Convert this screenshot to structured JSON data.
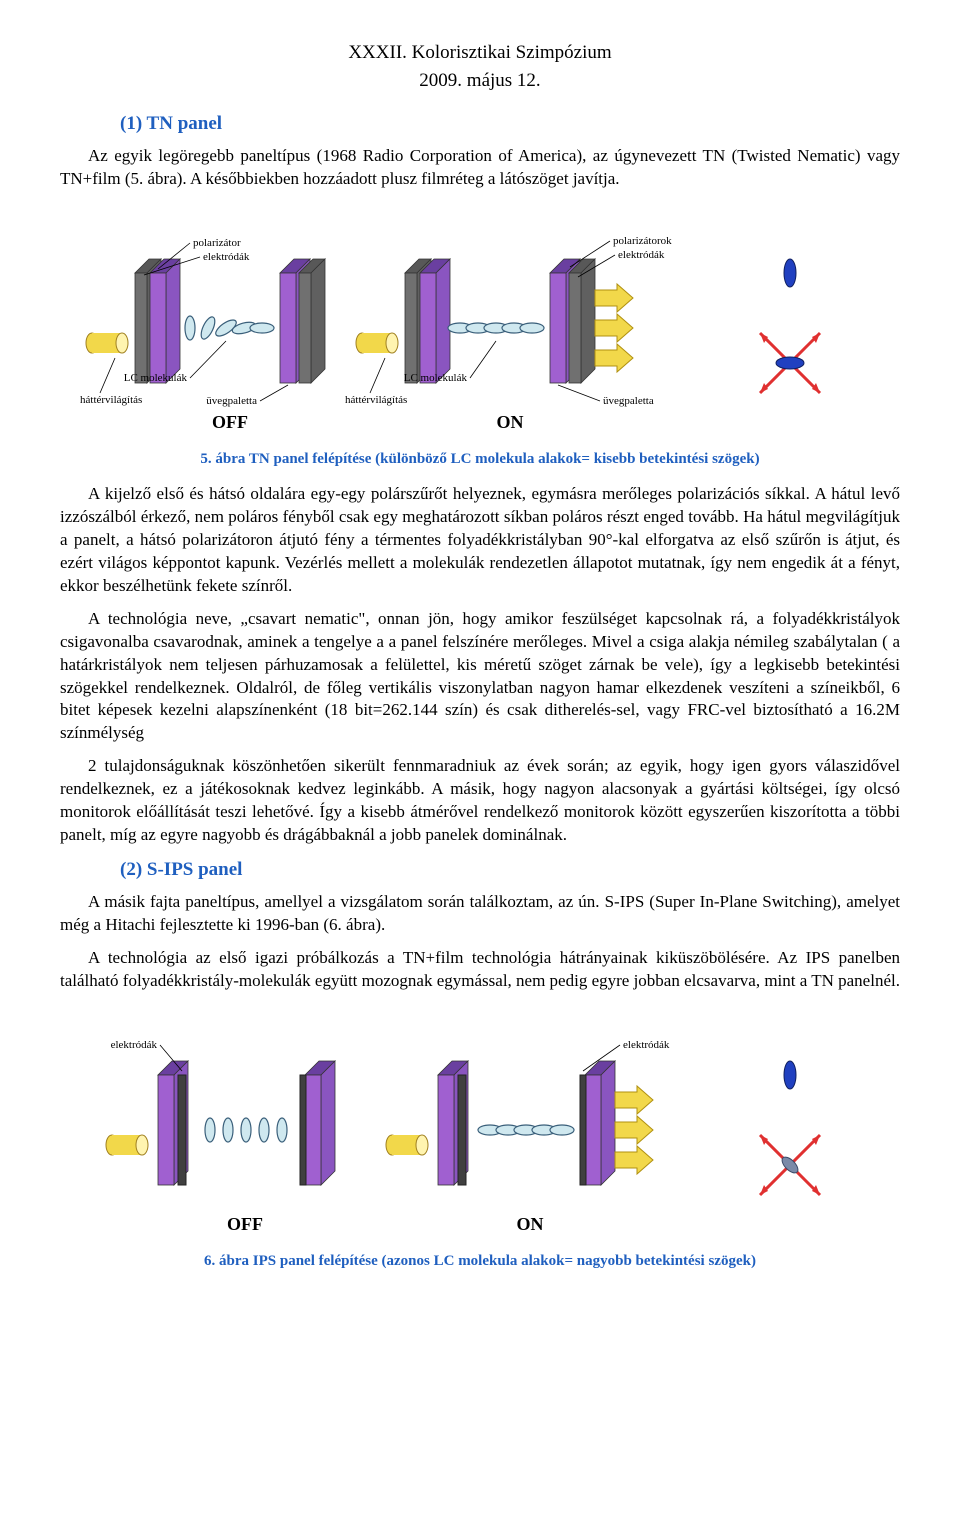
{
  "header": {
    "title": "XXXII. Kolorisztikai Szimpózium",
    "date": "2009. május 12."
  },
  "section1": {
    "heading": "(1) TN panel",
    "para1": "Az egyik legöregebb paneltípus (1968 Radio Corporation of America), az úgynevezett TN (Twisted Nematic) vagy TN+film (5. ábra). A későbbiekben hozzáadott plusz filmréteg a látószöget javítja.",
    "caption5_num": "5.",
    "caption5_text": " ábra TN panel felépítése (különböző LC molekula alakok= kisebb betekintési szögek)",
    "para2": "A kijelző első és hátsó oldalára egy-egy polárszűrőt helyeznek, egymásra merőleges polarizációs síkkal. A hátul levő izzószálból érkező, nem poláros fényből csak egy meghatározott síkban poláros részt enged tovább. Ha hátul megvilágítjuk a panelt, a hátsó polarizátoron átjutó fény a térmentes folyadékkristályban 90°-kal elforgatva az első szűrőn is átjut, és ezért világos képpontot kapunk. Vezérlés mellett a molekulák rendezetlen állapotot mutatnak, így nem engedik át a fényt, ekkor beszélhetünk fekete színről.",
    "para3": "A technológia neve, „csavart nematic\", onnan jön, hogy amikor feszülséget kapcsolnak rá, a folyadékkristályok csigavonalba csavarodnak, aminek a tengelye a a panel felszínére merőleges. Mivel a csiga alakja némileg szabálytalan ( a határkristályok nem teljesen párhuzamosak a felülettel, kis méretű szöget zárnak be vele), így a legkisebb betekintési szögekkel rendelkeznek. Oldalról, de főleg vertikális viszonylatban nagyon hamar elkezdenek veszíteni a színeikből, 6 bitet képesek kezelni alapszínenként (18 bit=262.144 szín) és csak ditherelés-sel, vagy FRC-vel biztosítható a 16.2M színmélység",
    "para4": "2 tulajdonságuknak köszönhetően sikerült fennmaradniuk az évek során; az egyik, hogy igen gyors válaszidővel rendelkeznek, ez a játékosoknak kedvez leginkább. A másik, hogy nagyon alacsonyak a gyártási költségei, így olcsó monitorok előállítását teszi lehetővé. Így a kisebb átmérővel rendelkező monitorok között egyszerűen kiszorította a többi panelt, míg az egyre nagyobb és drágábbaknál a jobb panelek dominálnak."
  },
  "section2": {
    "heading": "(2) S-IPS panel",
    "para1": "A másik fajta paneltípus, amellyel a vizsgálatom során találkoztam, az ún. S-IPS (Super In-Plane Switching), amelyet még a Hitachi fejlesztette ki 1996-ban (6. ábra).",
    "para2": "A technológia az első igazi próbálkozás a TN+film technológia hátrányainak kiküszöbölésére. Az IPS panelben található folyadékkristály-molekulák együtt mozognak egymással, nem pedig egyre jobban elcsavarva, mint a TN panelnél.",
    "caption6_num": "6.",
    "caption6_text": " ábra IPS panel felépítése (azonos LC molekula alakok= nagyobb betekintési szögek)"
  },
  "figure5": {
    "type": "diagram",
    "labels": {
      "polarizator": "polarizátor",
      "elektrodak": "elektródák",
      "lc_molekulak": "LC molekulák",
      "uvegpaletta": "üvegpaletta",
      "hattervilagitas": "háttérvilágítás",
      "polarizatorok": "polarizátorok",
      "off": "OFF",
      "on": "ON"
    },
    "colors": {
      "panel_fill": "#a060d0",
      "panel_top": "#6a3fa0",
      "panel_side": "#8a55c0",
      "electrode": "#404040",
      "backlight": "#f2d84a",
      "molecule_fill": "#cfe8ef",
      "molecule_stroke": "#3a5f7a",
      "arrow_yellow": "#f2d84a",
      "arrow_stroke": "#b09010",
      "blocker_red": "#e03030",
      "result_blue": "#2040c0",
      "label_line": "#000000",
      "text": "#000000"
    },
    "font_size_labels": 11,
    "font_size_state": 18
  },
  "figure6": {
    "type": "diagram",
    "labels": {
      "elektrodak": "elektródák",
      "off": "OFF",
      "on": "ON"
    },
    "colors": {
      "panel_fill": "#a060d0",
      "panel_top": "#6a3fa0",
      "panel_side": "#8a55c0",
      "electrode": "#404040",
      "backlight": "#f2d84a",
      "molecule_fill": "#cfe8ef",
      "molecule_stroke": "#3a5f7a",
      "arrow_yellow": "#f2d84a",
      "arrow_stroke": "#b09010",
      "blocker_red": "#e03030",
      "result_blue": "#2040c0",
      "label_line": "#000000",
      "text": "#000000"
    },
    "font_size_labels": 11,
    "font_size_state": 18
  }
}
